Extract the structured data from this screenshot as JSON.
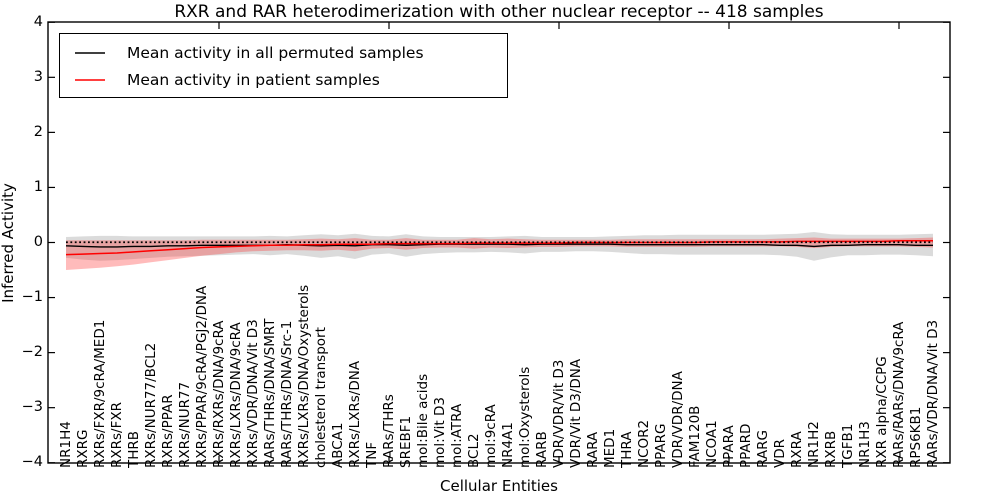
{
  "title": "RXR and RAR heterodimerization with other nuclear receptor -- 418 samples",
  "axes": {
    "xlabel": "Cellular Entities",
    "ylabel": "Inferred Activity",
    "ylim": [
      -4,
      4
    ],
    "ytick_values": [
      4,
      3,
      2,
      1,
      0,
      -1,
      -2,
      -3,
      -4
    ],
    "ytick_labels": [
      "4",
      "3",
      "2",
      "1",
      "0",
      "−1",
      "−2",
      "−3",
      "−4"
    ],
    "x_major_tick_indices": [
      9,
      19,
      29,
      39,
      49
    ],
    "grid": false,
    "frame_color": "#000000"
  },
  "legend": {
    "position": "upper left",
    "items": [
      {
        "label": "Mean activity in all permuted samples",
        "color": "#000000"
      },
      {
        "label": "Mean activity in patient samples",
        "color": "#ff0000"
      }
    ]
  },
  "chart_data": {
    "type": "line",
    "title": "RXR and RAR heterodimerization with other nuclear receptor -- 418 samples",
    "xlabel": "Cellular Entities",
    "ylabel": "Inferred Activity",
    "ylim": [
      -4,
      4
    ],
    "legend_position": "upper left",
    "categories": [
      "NR1H4",
      "RXRG",
      "RXRs/FXR/9cRA/MED1",
      "RXRs/FXR",
      "THRB",
      "RXRs/NUR77/BCL2",
      "RXRs/PPAR",
      "RXRs/NUR77",
      "RXRs/PPAR/9cRA/PGJ2/DNA",
      "RXRs/RXRs/DNA/9cRA",
      "RXRs/LXRs/DNA/9cRA",
      "RXRs/VDR/DNA/Vit D3",
      "RARs/THRs/DNA/SMRT",
      "RARs/THRs/DNA/Src-1",
      "RXRs/LXRs/DNA/Oxysterols",
      "cholesterol transport",
      "ABCA1",
      "RXRs/LXRs/DNA",
      "TNF",
      "RARs/THRs",
      "SREBF1",
      "mol:Bile acids",
      "mol:Vit D3",
      "mol:ATRA",
      "BCL2",
      "mol:9cRA",
      "NR4A1",
      "mol:Oxysterols",
      "RARB",
      "VDR/VDR/Vit D3",
      "VDR/Vit D3/DNA",
      "RARA",
      "MED1",
      "THRA",
      "NCOR2",
      "PPARG",
      "VDR/VDR/DNA",
      "FAM120B",
      "NCOA1",
      "PPARA",
      "PPARD",
      "RARG",
      "VDR",
      "RXRA",
      "NR1H2",
      "RXRB",
      "TGFB1",
      "NR1H3",
      "RXR alpha/CCPG",
      "RARs/RARs/DNA/9cRA",
      "RPS6KB1",
      "RARs/VDR/DNA/Vit D3"
    ],
    "series": [
      {
        "name": "Mean activity in all permuted samples",
        "color": "#000000",
        "band_color": "rgba(0,0,0,0.14)",
        "values": [
          -0.06,
          -0.07,
          -0.08,
          -0.08,
          -0.07,
          -0.07,
          -0.06,
          -0.06,
          -0.05,
          -0.05,
          -0.05,
          -0.05,
          -0.05,
          -0.04,
          -0.05,
          -0.06,
          -0.05,
          -0.06,
          -0.04,
          -0.04,
          -0.05,
          -0.04,
          -0.03,
          -0.03,
          -0.03,
          -0.03,
          -0.03,
          -0.04,
          -0.03,
          -0.03,
          -0.03,
          -0.03,
          -0.03,
          -0.04,
          -0.04,
          -0.04,
          -0.04,
          -0.04,
          -0.04,
          -0.04,
          -0.04,
          -0.04,
          -0.05,
          -0.05,
          -0.07,
          -0.05,
          -0.05,
          -0.04,
          -0.04,
          -0.04,
          -0.05,
          -0.05
        ],
        "band_upper": [
          0.1,
          0.11,
          0.12,
          0.12,
          0.11,
          0.11,
          0.11,
          0.11,
          0.11,
          0.11,
          0.11,
          0.11,
          0.12,
          0.11,
          0.13,
          0.15,
          0.13,
          0.16,
          0.12,
          0.11,
          0.15,
          0.11,
          0.1,
          0.1,
          0.1,
          0.1,
          0.11,
          0.12,
          0.1,
          0.1,
          0.1,
          0.1,
          0.11,
          0.12,
          0.13,
          0.13,
          0.14,
          0.14,
          0.14,
          0.14,
          0.14,
          0.14,
          0.15,
          0.16,
          0.19,
          0.15,
          0.14,
          0.14,
          0.14,
          0.14,
          0.15,
          0.16
        ],
        "band_lower": [
          -0.28,
          -0.31,
          -0.33,
          -0.32,
          -0.3,
          -0.28,
          -0.26,
          -0.25,
          -0.24,
          -0.23,
          -0.22,
          -0.21,
          -0.23,
          -0.21,
          -0.24,
          -0.28,
          -0.25,
          -0.3,
          -0.22,
          -0.2,
          -0.26,
          -0.21,
          -0.19,
          -0.18,
          -0.18,
          -0.17,
          -0.18,
          -0.2,
          -0.17,
          -0.17,
          -0.16,
          -0.16,
          -0.17,
          -0.19,
          -0.21,
          -0.21,
          -0.22,
          -0.22,
          -0.22,
          -0.22,
          -0.22,
          -0.22,
          -0.23,
          -0.26,
          -0.33,
          -0.27,
          -0.23,
          -0.23,
          -0.22,
          -0.22,
          -0.23,
          -0.25
        ]
      },
      {
        "name": "Mean activity in patient samples",
        "color": "#ff0000",
        "band_color": "rgba(255,45,45,0.32)",
        "values": [
          -0.22,
          -0.21,
          -0.2,
          -0.19,
          -0.17,
          -0.15,
          -0.13,
          -0.11,
          -0.09,
          -0.08,
          -0.07,
          -0.06,
          -0.05,
          -0.05,
          -0.04,
          -0.04,
          -0.03,
          -0.03,
          -0.03,
          -0.02,
          -0.02,
          -0.02,
          -0.02,
          -0.02,
          -0.01,
          -0.01,
          -0.01,
          -0.01,
          -0.01,
          -0.01,
          0.0,
          0.0,
          0.0,
          0.0,
          0.0,
          0.0,
          0.0,
          0.0,
          0.01,
          0.01,
          0.01,
          0.01,
          0.01,
          0.02,
          0.02,
          0.02,
          0.02,
          0.02,
          0.02,
          0.03,
          0.03,
          0.03
        ],
        "band_upper": [
          0.04,
          0.04,
          0.04,
          0.04,
          0.04,
          0.04,
          0.04,
          0.04,
          0.05,
          0.05,
          0.05,
          0.05,
          0.05,
          0.05,
          0.06,
          0.07,
          0.06,
          0.08,
          0.05,
          0.05,
          0.08,
          0.05,
          0.05,
          0.05,
          0.08,
          0.06,
          0.07,
          0.06,
          0.05,
          0.05,
          0.05,
          0.05,
          0.05,
          0.06,
          0.06,
          0.06,
          0.06,
          0.06,
          0.06,
          0.06,
          0.06,
          0.06,
          0.07,
          0.08,
          0.09,
          0.07,
          0.07,
          0.07,
          0.07,
          0.07,
          0.08,
          0.09
        ],
        "band_lower": [
          -0.5,
          -0.48,
          -0.46,
          -0.43,
          -0.4,
          -0.36,
          -0.32,
          -0.28,
          -0.24,
          -0.21,
          -0.18,
          -0.16,
          -0.15,
          -0.14,
          -0.14,
          -0.15,
          -0.13,
          -0.16,
          -0.11,
          -0.1,
          -0.13,
          -0.1,
          -0.09,
          -0.09,
          -0.11,
          -0.09,
          -0.1,
          -0.09,
          -0.08,
          -0.08,
          -0.07,
          -0.07,
          -0.07,
          -0.08,
          -0.08,
          -0.08,
          -0.08,
          -0.08,
          -0.07,
          -0.07,
          -0.07,
          -0.07,
          -0.07,
          -0.08,
          -0.1,
          -0.08,
          -0.07,
          -0.07,
          -0.07,
          -0.07,
          -0.08,
          -0.09
        ]
      }
    ],
    "zero_reference_line": {
      "value": 0,
      "style": "dotted",
      "color": "#000000"
    }
  }
}
